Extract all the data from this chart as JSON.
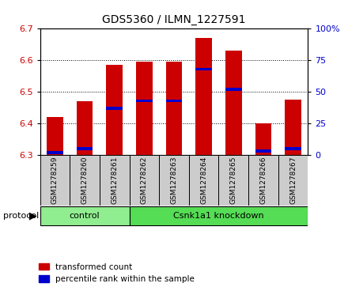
{
  "title": "GDS5360 / ILMN_1227591",
  "samples": [
    "GSM1278259",
    "GSM1278260",
    "GSM1278261",
    "GSM1278262",
    "GSM1278263",
    "GSM1278264",
    "GSM1278265",
    "GSM1278266",
    "GSM1278267"
  ],
  "transformed_count": [
    6.42,
    6.47,
    6.585,
    6.595,
    6.595,
    6.67,
    6.63,
    6.4,
    6.475
  ],
  "percentile_rank": [
    2,
    5,
    37,
    43,
    43,
    68,
    52,
    3,
    5
  ],
  "ylim_left": [
    6.3,
    6.7
  ],
  "ylim_right": [
    0,
    100
  ],
  "yticks_left": [
    6.3,
    6.4,
    6.5,
    6.6,
    6.7
  ],
  "yticks_right": [
    0,
    25,
    50,
    75,
    100
  ],
  "bar_bottom": 6.3,
  "bar_color": "#cc0000",
  "percentile_color": "#0000cc",
  "protocol_groups": [
    {
      "label": "control",
      "start": 0,
      "end": 3,
      "color": "#90ee90"
    },
    {
      "label": "Csnk1a1 knockdown",
      "start": 3,
      "end": 9,
      "color": "#55dd55"
    }
  ],
  "legend_items": [
    {
      "label": "transformed count",
      "color": "#cc0000"
    },
    {
      "label": "percentile rank within the sample",
      "color": "#0000cc"
    }
  ],
  "protocol_label": "protocol",
  "tick_label_color_left": "#cc0000",
  "tick_label_color_right": "#0000cc",
  "bg_color": "#ffffff",
  "sample_box_color": "#cccccc",
  "bar_width": 0.55
}
